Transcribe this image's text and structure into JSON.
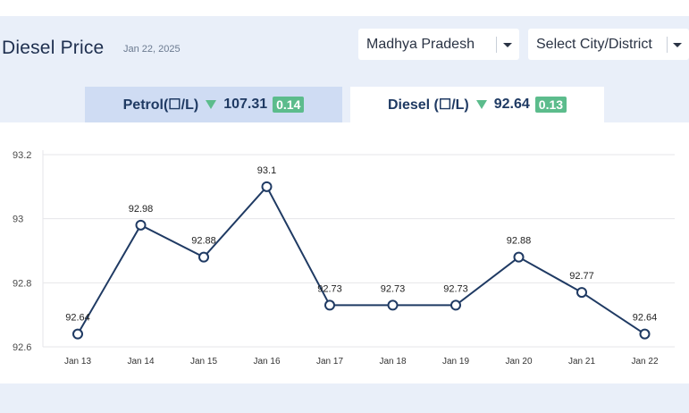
{
  "header": {
    "title": "Diesel Price",
    "date": "Jan 22, 2025"
  },
  "filters": {
    "state": {
      "value": "Madhya Pradesh"
    },
    "city": {
      "placeholder": "Select City/District"
    }
  },
  "tabs": [
    {
      "label": "Petrol(☐/L)",
      "price": "107.31",
      "change": "0.14",
      "trend": "down"
    },
    {
      "label": "Diesel (☐/L)",
      "price": "92.64",
      "change": "0.13",
      "trend": "down",
      "active": true
    }
  ],
  "colors": {
    "line": "#1f3a63",
    "badge": "#5cbc8c",
    "active_tab": "#ffffff",
    "inactive_tab": "#cfdcf3"
  },
  "chart_data": {
    "type": "line",
    "categories": [
      "Jan 13",
      "Jan 14",
      "Jan 15",
      "Jan 16",
      "Jan 17",
      "Jan 18",
      "Jan 19",
      "Jan 20",
      "Jan 21",
      "Jan 22"
    ],
    "series": [
      {
        "values": [
          92.64,
          92.98,
          92.88,
          93.1,
          92.73,
          92.73,
          92.73,
          92.88,
          92.77,
          92.64
        ]
      }
    ],
    "data_labels": [
      "92.64",
      "92.98",
      "92.88",
      "93.1",
      "92.73",
      "92.73",
      "92.73",
      "92.88",
      "92.77",
      "92.64"
    ],
    "y_ticks": [
      "93.2",
      "93",
      "92.8",
      "92.6"
    ],
    "y_tick_values": [
      93.2,
      93.0,
      92.8,
      92.6
    ],
    "ylim": [
      92.6,
      93.2
    ],
    "grid": true
  }
}
